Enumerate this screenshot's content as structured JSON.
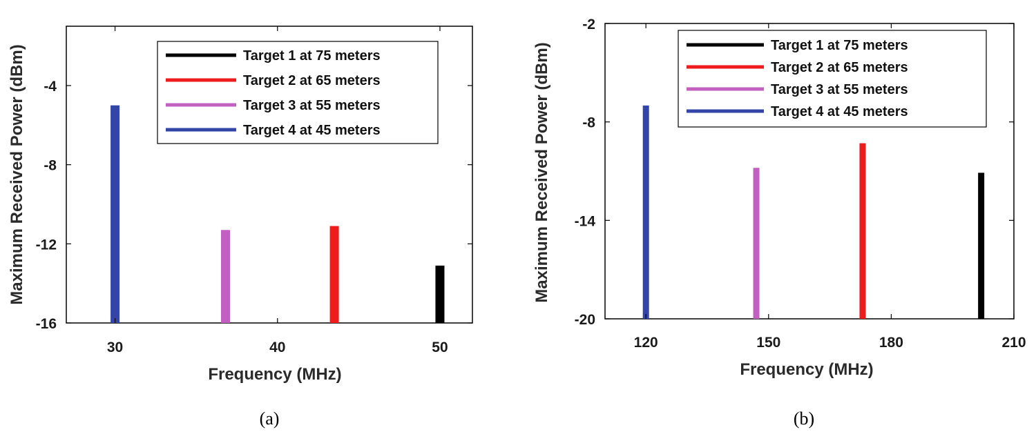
{
  "chart_data": [
    {
      "type": "bar",
      "panel": "(a)",
      "xlabel": "Frequency (MHz)",
      "ylabel": "Maximum Received Power (dBm)",
      "xlim": [
        27,
        52
      ],
      "ylim": [
        -16,
        -1
      ],
      "xticks": [
        "30",
        "40",
        "50"
      ],
      "yticks": [
        "-4",
        "-8",
        "-12",
        "-16"
      ],
      "legend_position": "top-right",
      "series": [
        {
          "name": "Target 1 at 75 meters",
          "color": "#000000",
          "x": 50,
          "value": -13.1
        },
        {
          "name": "Target 2 at 65 meters",
          "color": "#ee1c1c",
          "x": 43.5,
          "value": -11.1
        },
        {
          "name": "Target 3 at 55 meters",
          "color": "#c260c2",
          "x": 36.8,
          "value": -11.3
        },
        {
          "name": "Target 4 at 45 meters",
          "color": "#3346a8",
          "x": 30,
          "value": -5
        }
      ]
    },
    {
      "type": "bar",
      "panel": "(b)",
      "xlabel": "Frequency (MHz)",
      "ylabel": "Maximum Received Power (dBm)",
      "xlim": [
        110,
        210
      ],
      "ylim": [
        -20,
        -2
      ],
      "xticks": [
        "120",
        "150",
        "180",
        "210"
      ],
      "yticks": [
        "-2",
        "-8",
        "-14",
        "-20"
      ],
      "legend_position": "top-right",
      "series": [
        {
          "name": "Target 1 at 75 meters",
          "color": "#000000",
          "x": 202,
          "value": -11.1
        },
        {
          "name": "Target 2 at 65 meters",
          "color": "#ee1c1c",
          "x": 173,
          "value": -9.3
        },
        {
          "name": "Target 3 at 55 meters",
          "color": "#c260c2",
          "x": 147,
          "value": -10.8
        },
        {
          "name": "Target 4 at 45 meters",
          "color": "#3346a8",
          "x": 120,
          "value": -7
        }
      ]
    }
  ]
}
